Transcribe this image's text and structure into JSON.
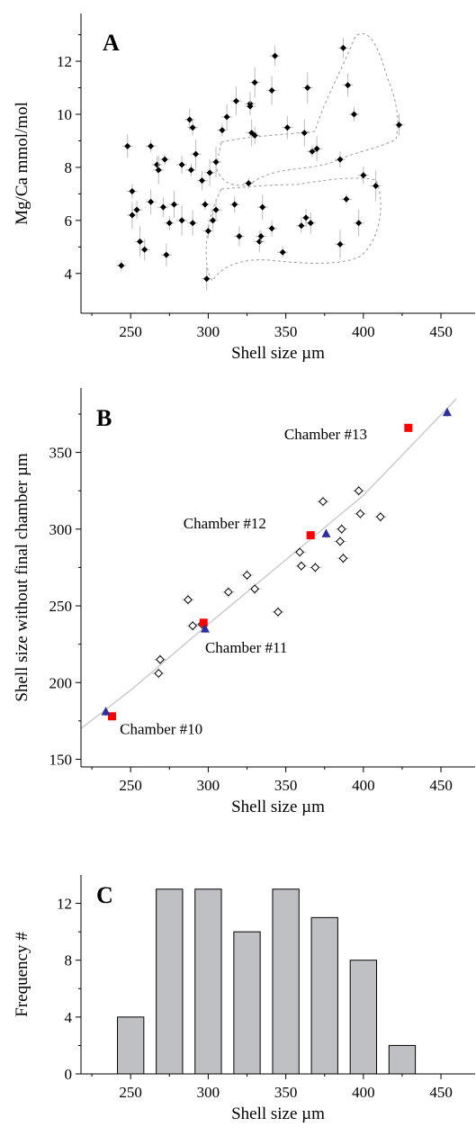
{
  "chart_data": [
    {
      "panel": "A",
      "type": "scatter",
      "title": "",
      "xlabel": "Shell size µm",
      "ylabel": "Mg/Ca mmol/mol",
      "xlim": [
        218,
        472
      ],
      "ylim": [
        2.5,
        13.8
      ],
      "xticks": [
        250,
        300,
        350,
        400,
        450
      ],
      "yticks": [
        4,
        6,
        8,
        10,
        12
      ],
      "grid": false,
      "marker": "filled-diamond",
      "error_bars": true,
      "points": [
        [
          244,
          4.3
        ],
        [
          248,
          8.8
        ],
        [
          251,
          7.1
        ],
        [
          251,
          6.2
        ],
        [
          254,
          6.4
        ],
        [
          256,
          5.2
        ],
        [
          259,
          4.9
        ],
        [
          263,
          8.8
        ],
        [
          263,
          6.7
        ],
        [
          267,
          8.1
        ],
        [
          268,
          7.9
        ],
        [
          271,
          6.5
        ],
        [
          272,
          8.3
        ],
        [
          273,
          4.7
        ],
        [
          275,
          5.9
        ],
        [
          278,
          6.6
        ],
        [
          283,
          8.1
        ],
        [
          283,
          6.0
        ],
        [
          288,
          9.8
        ],
        [
          289,
          7.9
        ],
        [
          290,
          5.9
        ],
        [
          290,
          9.5
        ],
        [
          292,
          8.5
        ],
        [
          296,
          7.5
        ],
        [
          298,
          6.6
        ],
        [
          299,
          3.8
        ],
        [
          300,
          5.6
        ],
        [
          301,
          7.8
        ],
        [
          303,
          6.0
        ],
        [
          305,
          8.2
        ],
        [
          305,
          6.4
        ],
        [
          309,
          9.4
        ],
        [
          312,
          9.9
        ],
        [
          317,
          6.6
        ],
        [
          318,
          10.5
        ],
        [
          320,
          5.4
        ],
        [
          326,
          7.4
        ],
        [
          327,
          10.4
        ],
        [
          327,
          10.3
        ],
        [
          328,
          9.3
        ],
        [
          330,
          9.2
        ],
        [
          330,
          11.2
        ],
        [
          333,
          5.2
        ],
        [
          334,
          5.4
        ],
        [
          335,
          6.5
        ],
        [
          341,
          5.7
        ],
        [
          341,
          10.9
        ],
        [
          343,
          12.2
        ],
        [
          348,
          4.8
        ],
        [
          351,
          9.5
        ],
        [
          360,
          5.8
        ],
        [
          362,
          9.3
        ],
        [
          363,
          6.1
        ],
        [
          364,
          11.0
        ],
        [
          366,
          5.9
        ],
        [
          367,
          8.6
        ],
        [
          370,
          8.7
        ],
        [
          385,
          8.3
        ],
        [
          385,
          5.1
        ],
        [
          387,
          12.5
        ],
        [
          389,
          6.8
        ],
        [
          390,
          11.1
        ],
        [
          394,
          10.0
        ],
        [
          397,
          5.9
        ],
        [
          400,
          7.7
        ],
        [
          408,
          7.3
        ],
        [
          423,
          9.6
        ]
      ]
    },
    {
      "panel": "B",
      "type": "scatter",
      "title": "",
      "xlabel": "Shell size µm",
      "ylabel": "Shell size without final chamber µm",
      "xlim": [
        218,
        472
      ],
      "ylim": [
        145,
        392
      ],
      "xticks": [
        250,
        300,
        350,
        400,
        450
      ],
      "yticks": [
        150,
        200,
        250,
        300,
        350
      ],
      "grid": false,
      "series": [
        {
          "marker": "open-diamond",
          "points": [
            [
              268,
              206
            ],
            [
              269,
              215
            ],
            [
              287,
              254
            ],
            [
              290,
              237
            ],
            [
              296,
              238
            ],
            [
              313,
              259
            ],
            [
              325,
              270
            ],
            [
              330,
              261
            ],
            [
              345,
              246
            ],
            [
              359,
              285
            ],
            [
              360,
              276
            ],
            [
              369,
              275
            ],
            [
              374,
              318
            ],
            [
              385,
              292
            ],
            [
              386,
              300
            ],
            [
              387,
              281
            ],
            [
              397,
              325
            ],
            [
              398,
              310
            ],
            [
              411,
              308
            ]
          ]
        },
        {
          "marker": "red-square",
          "points": [
            [
              238,
              178
            ],
            [
              297,
              239
            ],
            [
              366,
              296
            ],
            [
              429,
              366
            ]
          ]
        },
        {
          "marker": "blue-triangle",
          "points": [
            [
              234,
              181
            ],
            [
              298,
              235
            ],
            [
              376,
              297
            ],
            [
              454,
              376
            ]
          ]
        }
      ],
      "trend_line": [
        [
          218,
          170
        ],
        [
          250,
          195
        ],
        [
          300,
          238
        ],
        [
          350,
          280
        ],
        [
          400,
          322
        ],
        [
          460,
          385
        ]
      ],
      "annotations": [
        {
          "text": "Chamber #10",
          "x": 243,
          "y": 170
        },
        {
          "text": "Chamber #11",
          "x": 298,
          "y": 223
        },
        {
          "text": "Chamber #12",
          "x": 284,
          "y": 304
        },
        {
          "text": "Chamber #13",
          "x": 349,
          "y": 362
        }
      ]
    },
    {
      "panel": "C",
      "type": "bar",
      "title": "",
      "xlabel": "Shell size µm",
      "ylabel": "Frequency #",
      "xlim": [
        218,
        472
      ],
      "ylim": [
        0,
        14
      ],
      "xticks": [
        250,
        300,
        350,
        400,
        450
      ],
      "yticks": [
        0,
        4,
        8,
        12
      ],
      "bin_centers": [
        250,
        275,
        300,
        325,
        350,
        375,
        400,
        425
      ],
      "values": [
        4,
        13,
        13,
        10,
        13,
        11,
        8,
        2
      ],
      "bar_color": "#bfc0c4"
    }
  ],
  "colors": {
    "red": "#ff0000",
    "blue": "#2e2e9e",
    "bar": "#bfc0c4"
  }
}
